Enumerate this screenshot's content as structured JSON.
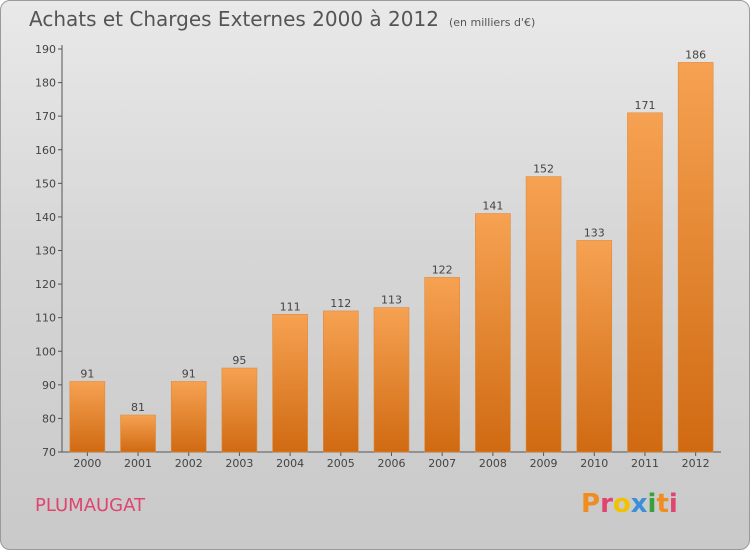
{
  "header": {
    "title": "Achats et Charges Externes 2000 à 2012",
    "unit": "(en milliers d'€)"
  },
  "footer": {
    "commune": "PLUMAUGAT",
    "logo_text": "Proxiti",
    "logo_letters": [
      "P",
      "r",
      "o",
      "x",
      "i",
      "t",
      "i"
    ],
    "logo_colors": [
      "#f08c20",
      "#e0446f",
      "#f2c200",
      "#3a8fd9",
      "#3aa03a",
      "#f08c20",
      "#e0446f"
    ]
  },
  "colors": {
    "bar_top": "#f6a252",
    "bar_bottom": "#d06a12",
    "axis": "#555555",
    "title": "#555555",
    "commune": "#e0446f"
  },
  "chart_data": {
    "type": "bar",
    "title": "Achats et Charges Externes 2000 à 2012",
    "subtitle": "(en milliers d'€)",
    "xlabel": "",
    "ylabel": "",
    "categories": [
      "2000",
      "2001",
      "2002",
      "2003",
      "2004",
      "2005",
      "2006",
      "2007",
      "2008",
      "2009",
      "2010",
      "2011",
      "2012"
    ],
    "values": [
      91,
      81,
      91,
      95,
      111,
      112,
      113,
      122,
      141,
      152,
      133,
      171,
      186
    ],
    "ylim": [
      70,
      190
    ],
    "yticks": [
      70,
      80,
      90,
      100,
      110,
      120,
      130,
      140,
      150,
      160,
      170,
      180,
      190
    ],
    "grid": false,
    "legend": "none",
    "data_labels": true
  }
}
